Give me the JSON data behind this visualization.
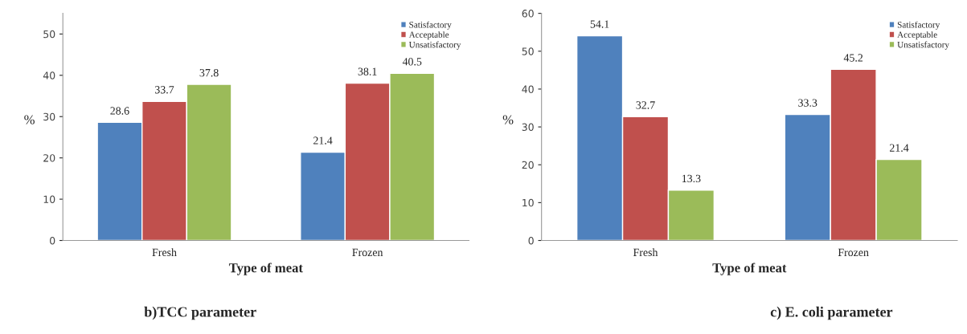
{
  "chart_data": [
    {
      "type": "bar",
      "xlabel": "Type of meat",
      "ylabel": "%",
      "categories": [
        "Fresh",
        "Frozen"
      ],
      "series": [
        {
          "name": "Satisfactory",
          "color": "#4f81bd",
          "values": [
            28.6,
            21.4
          ]
        },
        {
          "name": "Acceptable",
          "color": "#c0504d",
          "values": [
            33.7,
            38.1
          ]
        },
        {
          "name": "Unsatisfactory",
          "color": "#9bbb59",
          "values": [
            37.8,
            40.5
          ]
        }
      ],
      "ylim": [
        0,
        55
      ],
      "yticks": [
        0,
        10,
        20,
        30,
        40,
        50
      ],
      "grid": false,
      "legend": "top right",
      "data_labels": true,
      "annotations": [
        "b)TCC parameter"
      ]
    },
    {
      "type": "bar",
      "xlabel": "Type of meat",
      "ylabel": "%",
      "categories": [
        "Fresh",
        "Frozen"
      ],
      "series": [
        {
          "name": "Satisfactory",
          "color": "#4f81bd",
          "values": [
            54.1,
            33.3
          ]
        },
        {
          "name": "Acceptable",
          "color": "#c0504d",
          "values": [
            32.7,
            45.2
          ]
        },
        {
          "name": "Unsatisfactory",
          "color": "#9bbb59",
          "values": [
            13.3,
            21.4
          ]
        }
      ],
      "ylim": [
        0,
        60
      ],
      "yticks": [
        0,
        10,
        20,
        30,
        40,
        50,
        60
      ],
      "grid": false,
      "legend": "top right",
      "data_labels": true,
      "annotations": [
        "c) E. coli parameter"
      ]
    }
  ]
}
